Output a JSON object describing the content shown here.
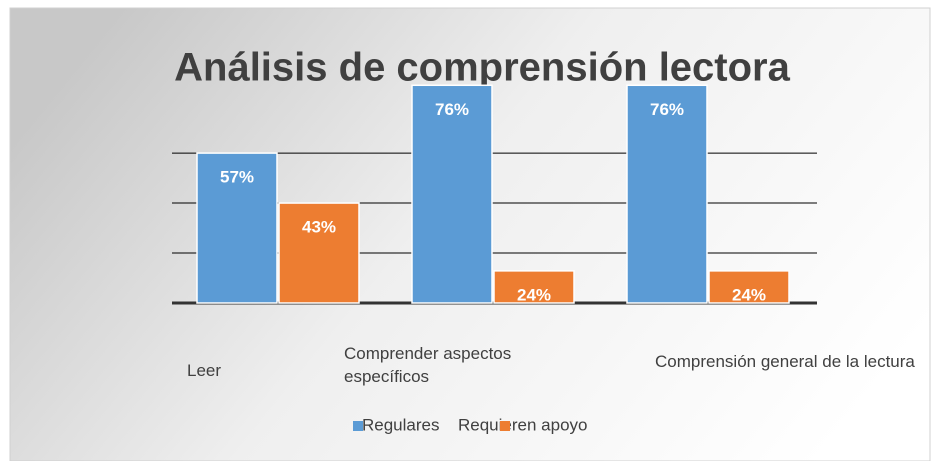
{
  "chart_data": {
    "type": "bar",
    "title": "Análisis de comprensión lectora",
    "categories": [
      "Leer",
      "Comprender aspectos específicos",
      "Comprensión general de la lectura"
    ],
    "series": [
      {
        "name": "Regulares",
        "color": "#5b9bd5",
        "values": [
          57,
          76,
          76
        ],
        "value_labels": [
          "57%",
          "76%",
          "76%"
        ]
      },
      {
        "name": "Requieren apoyo",
        "color": "#ed7d31",
        "values": [
          43,
          24,
          24
        ],
        "value_labels": [
          "43%",
          "24%",
          "24%"
        ]
      }
    ],
    "ylim": [
      15,
      80
    ],
    "yticks": [
      15,
      29,
      43,
      57
    ],
    "grid": true,
    "legend": "bottom"
  }
}
